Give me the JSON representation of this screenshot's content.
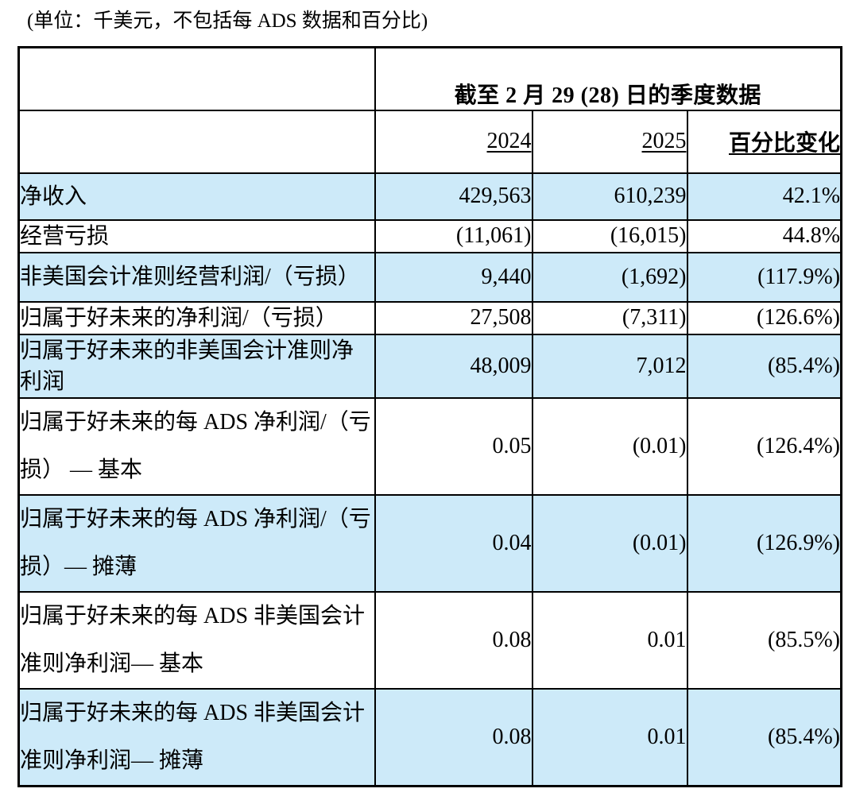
{
  "caption": "(单位：千美元，不包括每 ADS 数据和百分比)",
  "table": {
    "span_header": "截至 2 月 29 (28) 日的季度数据",
    "col_headers": [
      "2024",
      "2025",
      "百分比变化"
    ],
    "colors": {
      "row_shade": "#cdeaf9",
      "border": "#000000"
    },
    "rows": [
      {
        "label_lines": [
          "净收入"
        ],
        "v2024": "429,563",
        "v2025": "610,239",
        "pct": "42.1%",
        "shaded": true,
        "spread": false
      },
      {
        "label_lines": [
          "经营亏损"
        ],
        "v2024": "(11,061)",
        "v2025": "(16,015)",
        "pct": "44.8%",
        "shaded": false,
        "spread": false
      },
      {
        "label_lines": [
          "非美国会计准则经营利润/（亏损）"
        ],
        "v2024": "9,440",
        "v2025": "(1,692)",
        "pct": "(117.9%)",
        "shaded": true,
        "spread": false
      },
      {
        "label_lines": [
          "归属于好未来的净利润/（亏损）"
        ],
        "v2024": "27,508",
        "v2025": "(7,311)",
        "pct": "(126.6%)",
        "shaded": false,
        "spread": false
      },
      {
        "label_lines": [
          "归属于好未来的非美国会计准则净",
          "利润"
        ],
        "v2024": "48,009",
        "v2025": "7,012",
        "pct": "(85.4%)",
        "shaded": true,
        "spread": false
      },
      {
        "label_lines": [
          "归属于好未来的每 ADS 净利润/（亏",
          "损） — 基本"
        ],
        "v2024": "0.05",
        "v2025": "(0.01)",
        "pct": "(126.4%)",
        "shaded": false,
        "spread": true
      },
      {
        "label_lines": [
          "归属于好未来的每 ADS 净利润/（亏",
          "损）— 摊薄"
        ],
        "v2024": "0.04",
        "v2025": "(0.01)",
        "pct": "(126.9%)",
        "shaded": true,
        "spread": true
      },
      {
        "label_lines": [
          "归属于好未来的每 ADS 非美国会计",
          "准则净利润— 基本"
        ],
        "v2024": "0.08",
        "v2025": "0.01",
        "pct": "(85.5%)",
        "shaded": false,
        "spread": true
      },
      {
        "label_lines": [
          "归属于好未来的每 ADS 非美国会计",
          "准则净利润— 摊薄"
        ],
        "v2024": "0.08",
        "v2025": "0.01",
        "pct": "(85.4%)",
        "shaded": true,
        "spread": true
      }
    ]
  }
}
